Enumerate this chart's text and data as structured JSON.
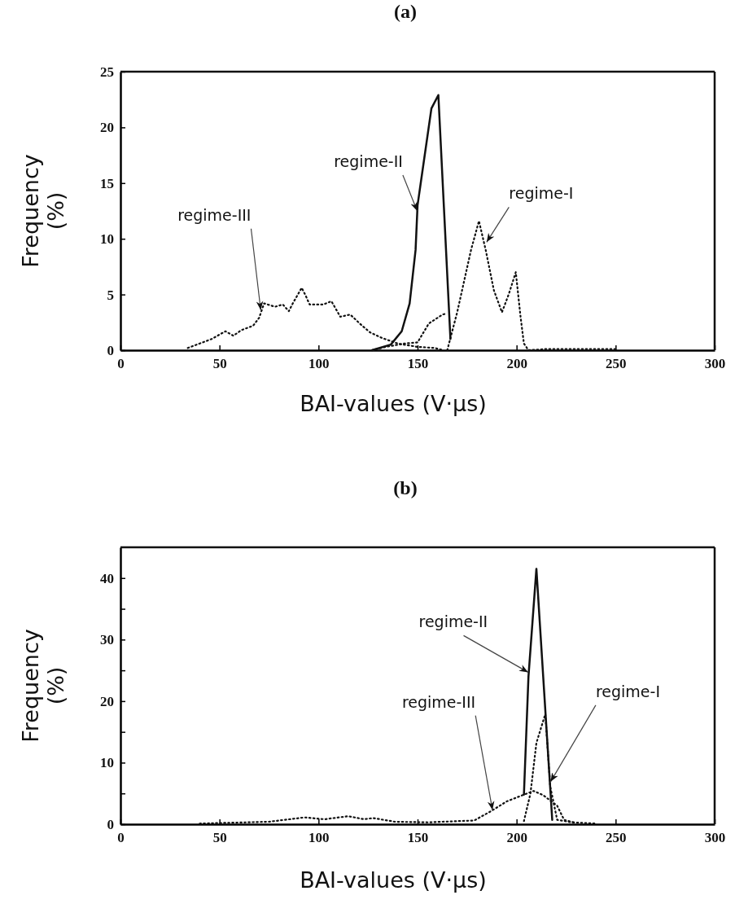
{
  "chart_data": [
    {
      "type": "line",
      "title": "(a)",
      "xlabel": "BAI-values (V·μs)",
      "ylabel": "Frequency (%)",
      "xlim": [
        0,
        300
      ],
      "xticks": [
        0,
        50,
        100,
        150,
        200,
        250,
        300
      ],
      "ylim": [
        0,
        25
      ],
      "yticks": [
        0,
        5,
        10,
        15,
        20,
        25
      ],
      "marker": "none",
      "series": [
        {
          "color": "#111111",
          "line_style": "dotted",
          "x": [
            165,
            170,
            173.5,
            177,
            181,
            184.4,
            188.5,
            192.6,
            196,
            199.6,
            202,
            203.7,
            206,
            215,
            230,
            250
          ],
          "values": [
            0,
            3.4,
            6.2,
            9,
            11.6,
            9,
            5.4,
            3.4,
            5,
            7,
            3,
            0.6,
            0,
            0.1,
            0.1,
            0.1
          ]
        },
        {
          "color": "#111111",
          "line_style": "solid",
          "x": [
            127,
            136.5,
            142,
            146,
            149,
            150,
            151.6,
            157,
            160.5,
            166.6
          ],
          "values": [
            0,
            0.5,
            1.7,
            4.2,
            9,
            13,
            15,
            21.7,
            22.9,
            1
          ]
        },
        {
          "color": "#111111",
          "line_style": "dotted",
          "x": [
            34,
            46,
            53,
            57,
            61,
            67,
            70,
            72.5,
            78,
            82,
            85,
            87,
            91.5,
            93.5,
            95.5,
            102.5,
            106.5,
            111,
            116,
            122,
            126,
            132,
            140,
            150,
            158.6,
            163
          ],
          "values": [
            0.2,
            1,
            1.7,
            1.3,
            1.8,
            2.2,
            2.9,
            4.2,
            3.9,
            4.1,
            3.5,
            4.2,
            5.6,
            4.9,
            4.1,
            4.1,
            4.4,
            3,
            3.2,
            2.2,
            1.6,
            1.1,
            0.6,
            0.3,
            0.2,
            0
          ]
        },
        {
          "color": "#111111",
          "line_style": "dotted",
          "x": [
            127,
            134,
            143.4,
            150,
            155.7,
            162.6,
            165
          ],
          "values": [
            0,
            0.3,
            0.6,
            0.7,
            2.4,
            3.2,
            3.3
          ]
        }
      ],
      "annotations": [
        {
          "text": "regime-II",
          "x": 149,
          "y": 12.5
        },
        {
          "text": "regime-I",
          "x": 185.7,
          "y": 9.7
        },
        {
          "text": "regime-III",
          "x": 70,
          "y": 3.6
        }
      ]
    },
    {
      "type": "line",
      "title": "(b)",
      "xlabel": "BAI-values (V·μs)",
      "ylabel": "Frequency (%)",
      "xlim": [
        0,
        300
      ],
      "xticks": [
        0,
        50,
        100,
        150,
        200,
        250,
        300
      ],
      "ylim": [
        0,
        45
      ],
      "yticks": [
        0,
        {
          "value": 5,
          "label": null
        },
        10,
        {
          "value": 15,
          "label": null
        },
        20,
        {
          "value": 25,
          "label": null
        },
        30,
        {
          "value": 35,
          "label": null
        },
        40
      ],
      "marker": "none",
      "series": [
        {
          "color": "#111111",
          "line_style": "dotted",
          "x": [
            203.7,
            207,
            210,
            214.5,
            217,
            220.5,
            228,
            240
          ],
          "values": [
            0.5,
            5,
            13.2,
            17.9,
            6.1,
            0.7,
            0.3,
            0.1
          ]
        },
        {
          "color": "#111111",
          "line_style": "solid",
          "x": [
            203.7,
            206,
            210,
            218
          ],
          "values": [
            4.8,
            24,
            41.5,
            0.7
          ]
        },
        {
          "color": "#111111",
          "line_style": "dotted",
          "x": [
            40,
            75,
            93,
            103,
            115,
            123,
            127.5,
            138.5,
            155,
            178.6,
            187,
            195,
            203.7,
            208.6,
            213.5,
            220.5,
            224,
            230
          ],
          "values": [
            0.1,
            0.4,
            1.1,
            0.8,
            1.3,
            0.8,
            1,
            0.4,
            0.3,
            0.6,
            2.1,
            3.7,
            4.8,
            5.4,
            4.7,
            3,
            0.7,
            0.2
          ]
        }
      ],
      "annotations": [
        {
          "text": "regime-II",
          "x": 205,
          "y": 24.7
        },
        {
          "text": "regime-III",
          "x": 187,
          "y": 2.3
        },
        {
          "text": "regime-I",
          "x": 218,
          "y": 6.9
        }
      ]
    }
  ]
}
